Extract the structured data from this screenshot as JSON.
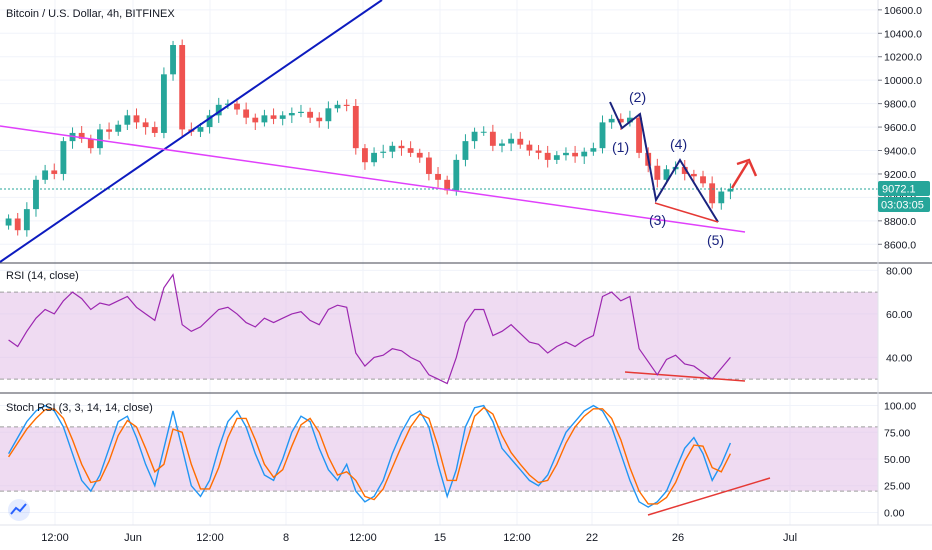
{
  "header": {
    "symbol_title": "Bitcoin / U.S. Dollar, 4h, BITFINEX"
  },
  "colors": {
    "up": "#26a69a",
    "down": "#ef5350",
    "rsi_line": "#9c27b0",
    "rsi_band": "#e1bee7",
    "stoch_k": "#2196f3",
    "stoch_d": "#ff6d00",
    "trendline_blue": "#0d1bbf",
    "trendline_pink": "#e040fb",
    "divergence_red": "#e53935",
    "price_label_bg": "#26a69a"
  },
  "price_badges": {
    "last_price": "9072.1",
    "countdown": "03:03:05"
  },
  "rsi_pane": {
    "title": "RSI (14, close)"
  },
  "stoch_pane": {
    "title": "Stoch RSI (3, 3, 14, 14, close)"
  },
  "annotations": {
    "wave_1": "(1)",
    "wave_2": "(2)",
    "wave_3": "(3)",
    "wave_4": "(4)",
    "wave_5": "(5)"
  },
  "chart_data": [
    {
      "type": "candlestick",
      "pane": "price",
      "ylim": [
        8500,
        10650
      ],
      "y_ticks": [
        "8600.0",
        "8800.0",
        "9000.0",
        "9200.0",
        "9400.0",
        "9600.0",
        "9800.0",
        "10000.0",
        "10200.0",
        "10400.0",
        "10600.0"
      ],
      "x_ticks": [
        "12:00",
        "Jun",
        "12:00",
        "8",
        "12:00",
        "15",
        "12:00",
        "22",
        "26",
        "Jul"
      ],
      "closes": [
        8820,
        8720,
        8900,
        9150,
        9230,
        9200,
        9480,
        9550,
        9500,
        9420,
        9580,
        9560,
        9620,
        9700,
        9640,
        9600,
        9550,
        10050,
        10300,
        9580,
        9560,
        9600,
        9700,
        9790,
        9800,
        9750,
        9680,
        9640,
        9700,
        9670,
        9700,
        9720,
        9730,
        9680,
        9650,
        9760,
        9790,
        9780,
        9420,
        9300,
        9380,
        9390,
        9440,
        9420,
        9380,
        9340,
        9200,
        9150,
        9060,
        9320,
        9480,
        9560,
        9560,
        9440,
        9460,
        9500,
        9450,
        9400,
        9380,
        9320,
        9360,
        9380,
        9350,
        9390,
        9420,
        9640,
        9670,
        9640,
        9680,
        9380,
        9270,
        9150,
        9240,
        9260,
        9200,
        9180,
        9120,
        8950,
        9050,
        9072
      ],
      "last_price": 9072.1
    },
    {
      "type": "line",
      "pane": "rsi",
      "title": "RSI (14, close)",
      "ylim": [
        25,
        82
      ],
      "y_ticks": [
        "40.00",
        "60.00",
        "80.00"
      ],
      "band": [
        30,
        70
      ],
      "values": [
        48,
        45,
        52,
        58,
        62,
        60,
        66,
        70,
        67,
        62,
        65,
        64,
        66,
        68,
        63,
        60,
        57,
        72,
        78,
        55,
        52,
        54,
        58,
        62,
        63,
        60,
        56,
        54,
        58,
        56,
        58,
        60,
        61,
        57,
        55,
        62,
        64,
        63,
        42,
        36,
        40,
        41,
        44,
        43,
        40,
        38,
        32,
        30,
        28,
        40,
        56,
        62,
        62,
        50,
        52,
        55,
        51,
        47,
        46,
        42,
        45,
        47,
        45,
        48,
        50,
        68,
        70,
        66,
        68,
        44,
        38,
        32,
        39,
        41,
        37,
        36,
        33,
        30,
        35,
        40
      ]
    },
    {
      "type": "line",
      "pane": "stoch_rsi",
      "title": "Stoch RSI (3, 3, 14, 14, close)",
      "ylim": [
        -8,
        108
      ],
      "y_ticks": [
        "0.00",
        "25.00",
        "50.00",
        "75.00",
        "100.00"
      ],
      "band": [
        20,
        80
      ],
      "series": [
        {
          "values": [
            55,
            70,
            85,
            95,
            100,
            95,
            80,
            55,
            30,
            20,
            35,
            60,
            85,
            90,
            70,
            45,
            25,
            60,
            95,
            60,
            25,
            15,
            30,
            60,
            85,
            95,
            80,
            55,
            35,
            30,
            50,
            75,
            90,
            85,
            60,
            40,
            30,
            45,
            20,
            10,
            15,
            30,
            55,
            75,
            90,
            95,
            80,
            45,
            15,
            40,
            80,
            98,
            100,
            85,
            60,
            50,
            40,
            30,
            25,
            35,
            55,
            75,
            85,
            95,
            100,
            95,
            80,
            55,
            30,
            10,
            5,
            10,
            20,
            40,
            60,
            70,
            55,
            30,
            45,
            65
          ]
        },
        {
          "values": [
            52,
            65,
            78,
            88,
            96,
            97,
            88,
            68,
            45,
            28,
            30,
            48,
            72,
            86,
            80,
            60,
            38,
            45,
            78,
            75,
            45,
            22,
            22,
            42,
            70,
            88,
            88,
            68,
            45,
            33,
            40,
            62,
            82,
            88,
            75,
            52,
            35,
            38,
            30,
            15,
            12,
            22,
            42,
            62,
            80,
            92,
            88,
            62,
            30,
            30,
            62,
            90,
            98,
            92,
            72,
            56,
            45,
            35,
            28,
            30,
            45,
            65,
            80,
            90,
            97,
            97,
            88,
            68,
            42,
            20,
            8,
            8,
            14,
            28,
            48,
            63,
            62,
            42,
            38,
            55
          ]
        }
      ]
    }
  ]
}
